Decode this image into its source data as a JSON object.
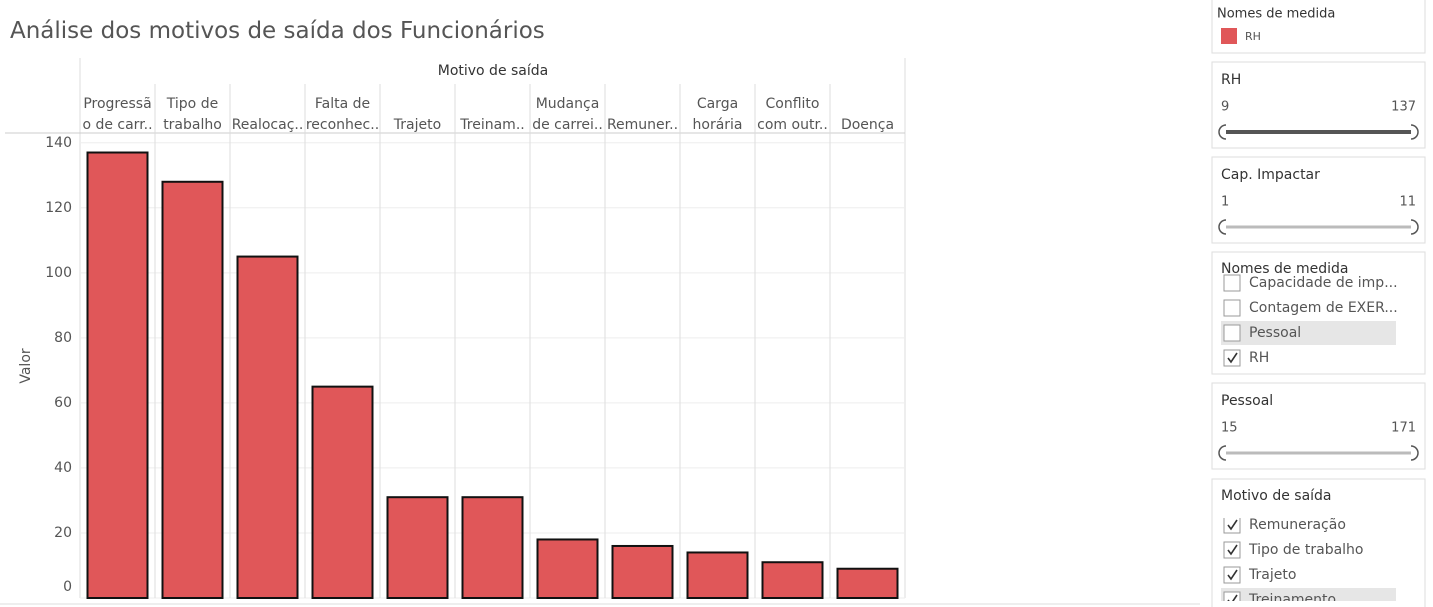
{
  "chart_data": {
    "type": "bar",
    "title": "Análise dos motivos de saída dos Funcionários",
    "x_label": "Motivo de saída",
    "y_label": "Valor",
    "categories": [
      [
        "Progressã",
        "o de carr.."
      ],
      [
        "Tipo de",
        "trabalho"
      ],
      [
        "Realocaç.."
      ],
      [
        "Falta de",
        "reconhec.."
      ],
      [
        "Trajeto"
      ],
      [
        "Treinam.."
      ],
      [
        "Mudança",
        "de carrei.."
      ],
      [
        "Remuner.."
      ],
      [
        "Carga",
        "horária"
      ],
      [
        "Conflito",
        "com outr.."
      ],
      [
        "Doença"
      ]
    ],
    "series": [
      {
        "name": "RH",
        "color": "#e05759",
        "values": [
          137,
          128,
          105,
          65,
          31,
          31,
          18,
          16,
          14,
          11,
          9
        ]
      }
    ],
    "ylim": [
      0,
      143
    ],
    "yticks": [
      0,
      20,
      40,
      60,
      80,
      100,
      120,
      140
    ],
    "grid": true
  },
  "sidebar": {
    "legend": {
      "title": "Nomes de medida"
    },
    "sliders": [
      {
        "title": "RH",
        "min": "9",
        "max": "137",
        "bold": true
      },
      {
        "title": "Cap. Impactar",
        "min": "1",
        "max": "11",
        "bold": false
      }
    ],
    "measure_filter": {
      "title": "Nomes de medida",
      "items": [
        {
          "label": "Capacidade de imp...",
          "checked": false
        },
        {
          "label": "Contagem de EXER...",
          "checked": false
        },
        {
          "label": "Pessoal",
          "checked": false
        },
        {
          "label": "RH",
          "checked": true
        }
      ]
    },
    "slider3": {
      "title": "Pessoal",
      "min": "15",
      "max": "171",
      "bold": false
    },
    "reason_filter": {
      "title": "Motivo de saída",
      "items": [
        {
          "label": "Remuneração",
          "checked": true
        },
        {
          "label": "Tipo de trabalho",
          "checked": true
        },
        {
          "label": "Trajeto",
          "checked": true
        },
        {
          "label": "Treinamento",
          "checked": true
        }
      ]
    }
  }
}
